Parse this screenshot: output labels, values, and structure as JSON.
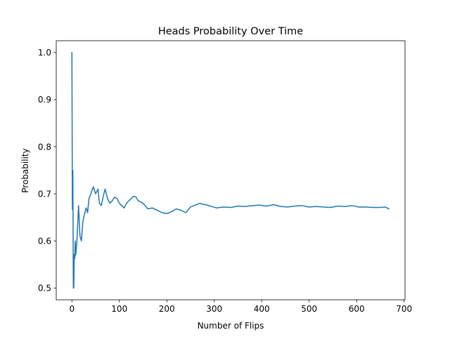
{
  "chart_data": {
    "type": "line",
    "title": "Heads Probability Over Time",
    "xlabel": "Number of Flips",
    "ylabel": "Probability",
    "xlim": [
      -33,
      702
    ],
    "ylim": [
      0.475,
      1.025
    ],
    "xticks": [
      0,
      100,
      200,
      300,
      400,
      500,
      600,
      700
    ],
    "xtick_labels": [
      "0",
      "100",
      "200",
      "300",
      "400",
      "500",
      "600",
      "700"
    ],
    "yticks": [
      0.5,
      0.6,
      0.7,
      0.8,
      0.9,
      1.0
    ],
    "ytick_labels": [
      "0.5",
      "0.6",
      "0.7",
      "0.8",
      "0.9",
      "1.0"
    ],
    "grid": false,
    "legend": null,
    "color": "#1f77b4",
    "series": [
      {
        "x": [
          0,
          1,
          2,
          3,
          4,
          5,
          6,
          7,
          8,
          10,
          12,
          14,
          17,
          20,
          23,
          26,
          30,
          33,
          36,
          40,
          45,
          50,
          55,
          58,
          62,
          66,
          70,
          75,
          80,
          85,
          90,
          95,
          100,
          105,
          110,
          115,
          120,
          125,
          130,
          135,
          140,
          145,
          150,
          160,
          170,
          180,
          190,
          200,
          210,
          220,
          230,
          240,
          250,
          260,
          270,
          275,
          285,
          295,
          305,
          320,
          335,
          350,
          365,
          380,
          395,
          410,
          425,
          440,
          455,
          470,
          485,
          500,
          515,
          530,
          545,
          560,
          575,
          590,
          605,
          620,
          635,
          650,
          660,
          668
        ],
        "y": [
          1.0,
          0.667,
          0.75,
          0.5,
          0.5,
          0.571,
          0.563,
          0.6,
          0.57,
          0.59,
          0.63,
          0.675,
          0.61,
          0.6,
          0.64,
          0.655,
          0.67,
          0.66,
          0.69,
          0.7,
          0.715,
          0.7,
          0.71,
          0.68,
          0.675,
          0.695,
          0.71,
          0.69,
          0.68,
          0.685,
          0.693,
          0.69,
          0.68,
          0.675,
          0.67,
          0.68,
          0.685,
          0.69,
          0.695,
          0.693,
          0.685,
          0.683,
          0.68,
          0.668,
          0.67,
          0.665,
          0.66,
          0.658,
          0.662,
          0.668,
          0.665,
          0.66,
          0.672,
          0.676,
          0.68,
          0.678,
          0.676,
          0.673,
          0.67,
          0.672,
          0.671,
          0.674,
          0.673,
          0.675,
          0.676,
          0.674,
          0.677,
          0.673,
          0.672,
          0.674,
          0.675,
          0.672,
          0.673,
          0.672,
          0.671,
          0.674,
          0.673,
          0.675,
          0.672,
          0.672,
          0.671,
          0.671,
          0.672,
          0.668
        ]
      }
    ]
  }
}
